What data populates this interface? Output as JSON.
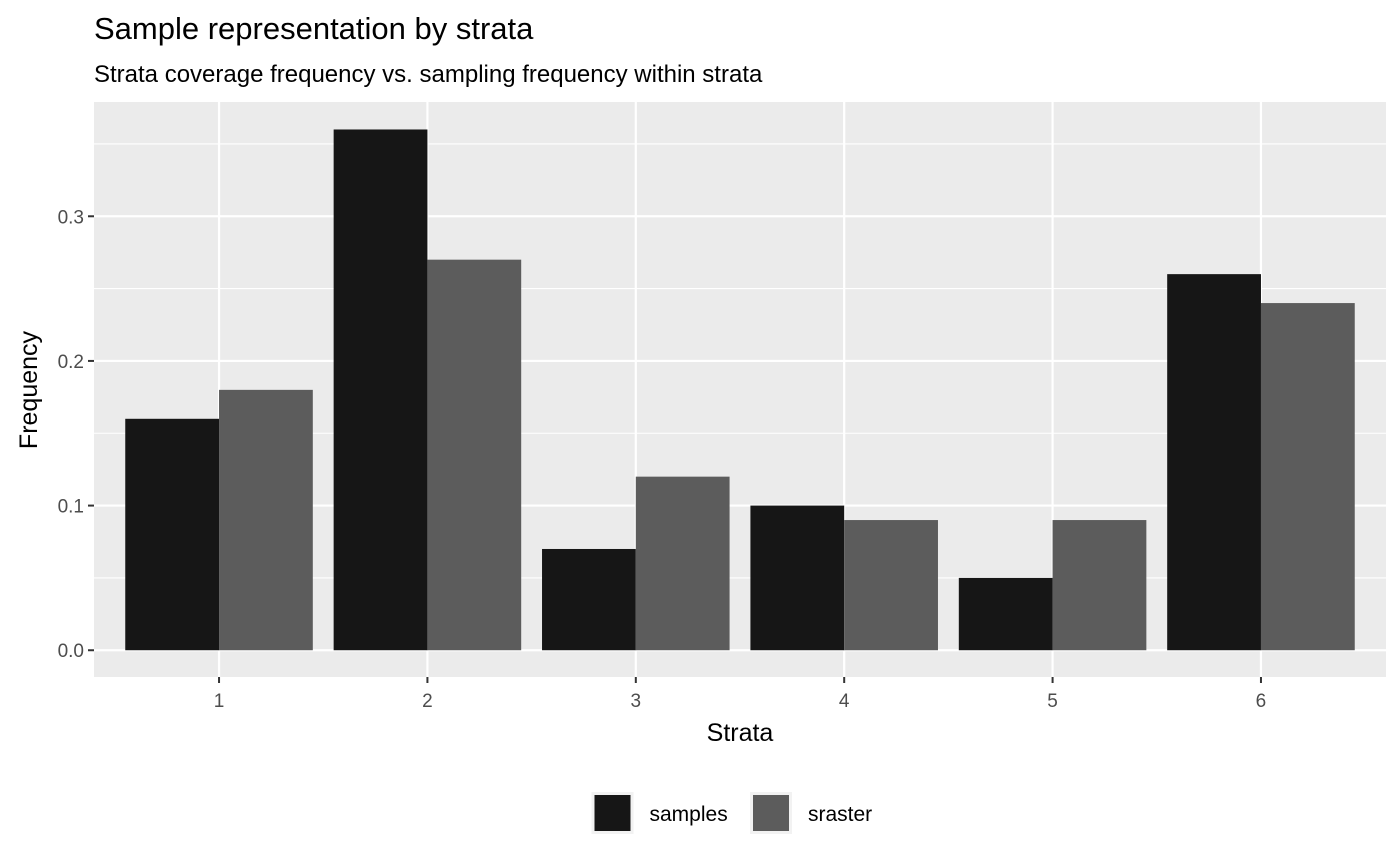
{
  "chart_data": {
    "type": "bar",
    "title": "Sample representation by strata",
    "subtitle": "Strata coverage frequency vs. sampling frequency within strata",
    "xlabel": "Strata",
    "ylabel": "Frequency",
    "categories": [
      "1",
      "2",
      "3",
      "4",
      "5",
      "6"
    ],
    "series": [
      {
        "name": "samples",
        "values": [
          0.16,
          0.36,
          0.07,
          0.1,
          0.05,
          0.26
        ],
        "color": "#161616"
      },
      {
        "name": "sraster",
        "values": [
          0.18,
          0.27,
          0.12,
          0.09,
          0.09,
          0.24
        ],
        "color": "#5c5c5c"
      }
    ],
    "ylim": [
      -0.0185,
      0.379
    ],
    "yticks": [
      0.0,
      0.1,
      0.2,
      0.3
    ],
    "ytick_labels": [
      "0.0",
      "0.1",
      "0.2",
      "0.3"
    ],
    "grid": true,
    "legend_position": "bottom",
    "colors": {
      "panel": "#ebebeb",
      "grid": "#ffffff",
      "tick_text": "#4d4d4d",
      "tick_mark": "#333333"
    }
  }
}
